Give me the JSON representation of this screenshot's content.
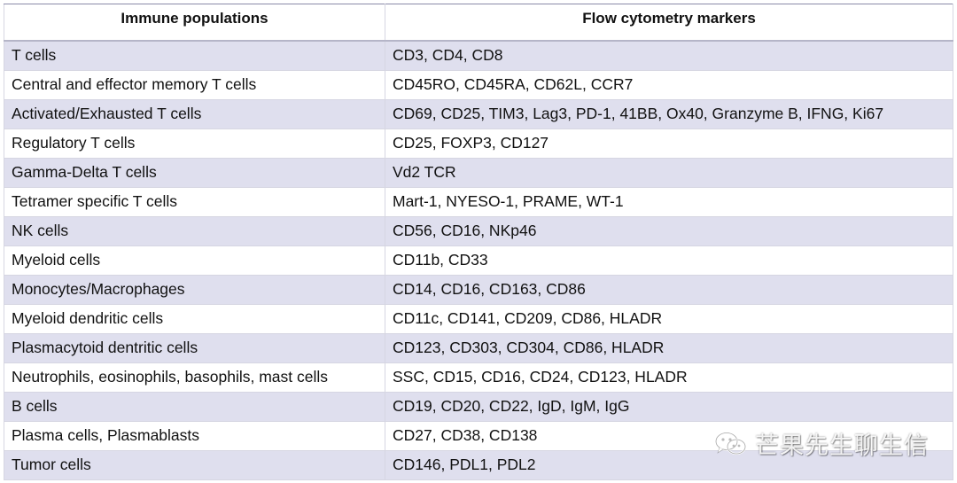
{
  "table": {
    "headers": [
      "Immune populations",
      "Flow cytometry markers"
    ],
    "rows": [
      [
        "T cells",
        "CD3, CD4, CD8"
      ],
      [
        "Central and effector memory T cells",
        "CD45RO, CD45RA, CD62L, CCR7"
      ],
      [
        "Activated/Exhausted T cells",
        "CD69, CD25, TIM3, Lag3, PD-1, 41BB, Ox40, Granzyme B, IFNG, Ki67"
      ],
      [
        "Regulatory T cells",
        "CD25, FOXP3, CD127"
      ],
      [
        "Gamma-Delta T cells",
        "Vd2 TCR"
      ],
      [
        "Tetramer specific T cells",
        "Mart-1, NYESO-1, PRAME, WT-1"
      ],
      [
        "NK cells",
        "CD56, CD16, NKp46"
      ],
      [
        "Myeloid cells",
        "CD11b, CD33"
      ],
      [
        "Monocytes/Macrophages",
        "CD14, CD16, CD163, CD86"
      ],
      [
        "Myeloid dendritic cells",
        "CD11c, CD141, CD209, CD86, HLADR"
      ],
      [
        "Plasmacytoid dentritic cells",
        "CD123, CD303, CD304, CD86, HLADR"
      ],
      [
        "Neutrophils, eosinophils, basophils, mast cells",
        "SSC, CD15, CD16, CD24, CD123, HLADR"
      ],
      [
        "B cells",
        "CD19, CD20, CD22, IgD, IgM, IgG"
      ],
      [
        "Plasma cells, Plasmablasts",
        "CD27, CD38, CD138"
      ],
      [
        "Tumor cells",
        "CD146, PDL1, PDL2"
      ]
    ]
  },
  "watermark": {
    "text": "芒果先生聊生信",
    "icon": "wechat-icon"
  },
  "colors": {
    "row_stripe": "#dfdfee",
    "border": "#d6d6e2"
  }
}
